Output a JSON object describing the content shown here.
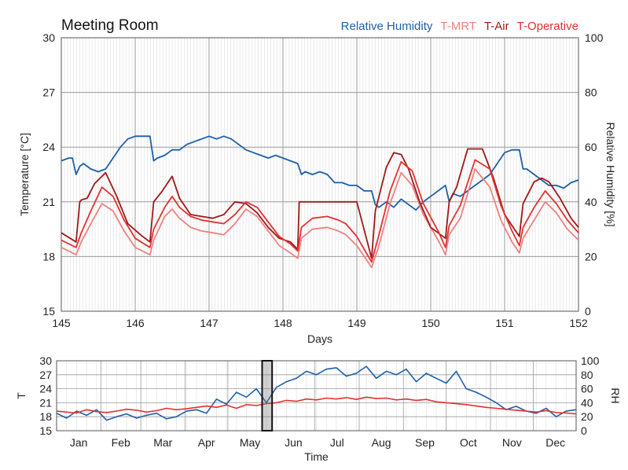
{
  "chart_data": [
    {
      "type": "line",
      "title": "Meeting Room",
      "xlabel": "Days",
      "ylabel": "Temperature [°C]",
      "y2label": "Relative Humidity [%]",
      "xlim": [
        145,
        152
      ],
      "ylim": [
        15,
        30
      ],
      "y2lim": [
        0,
        100
      ],
      "xticks": [
        "145",
        "146",
        "147",
        "148",
        "149",
        "150",
        "151",
        "152"
      ],
      "yticks": [
        "15",
        "18",
        "21",
        "24",
        "27",
        "30"
      ],
      "y2ticks": [
        "0",
        "20",
        "40",
        "60",
        "80",
        "100"
      ],
      "legend_position": "top-right",
      "grid": true,
      "series": [
        {
          "name": "Relative Humidity",
          "axis": "right",
          "color": "#1f5fa8",
          "x": [
            145.0,
            145.1,
            145.15,
            145.2,
            145.25,
            145.3,
            145.4,
            145.5,
            145.6,
            145.7,
            145.8,
            145.9,
            146.0,
            146.1,
            146.2,
            146.25,
            146.3,
            146.4,
            146.5,
            146.6,
            146.7,
            146.8,
            146.9,
            147.0,
            147.1,
            147.2,
            147.3,
            147.4,
            147.5,
            147.6,
            147.7,
            147.8,
            147.9,
            148.0,
            148.1,
            148.2,
            148.25,
            148.3,
            148.4,
            148.5,
            148.6,
            148.7,
            148.8,
            148.9,
            149.0,
            149.1,
            149.2,
            149.25,
            149.3,
            149.4,
            149.5,
            149.6,
            149.7,
            149.8,
            149.9,
            150.0,
            150.1,
            150.2,
            150.25,
            150.3,
            150.4,
            150.5,
            150.6,
            150.7,
            150.8,
            150.9,
            151.0,
            151.1,
            151.2,
            151.25,
            151.3,
            151.4,
            151.5,
            151.6,
            151.7,
            151.8,
            151.9,
            152.0
          ],
          "values": [
            55,
            56,
            56,
            50,
            53,
            54,
            52,
            51,
            52,
            56,
            60,
            63,
            64,
            64,
            64,
            55,
            56,
            57,
            59,
            59,
            61,
            62,
            63,
            64,
            63,
            64,
            63,
            61,
            59,
            58,
            57,
            56,
            57,
            56,
            55,
            54,
            50,
            51,
            50,
            51,
            50,
            47,
            47,
            46,
            46,
            44,
            44,
            39,
            38,
            40,
            38,
            41,
            39,
            37,
            40,
            42,
            44,
            46,
            40,
            43,
            42,
            44,
            46,
            48,
            50,
            54,
            58,
            59,
            59,
            52,
            52,
            50,
            48,
            46,
            46,
            45,
            47,
            48
          ]
        },
        {
          "name": "T-MRT",
          "axis": "left",
          "color": "#f08080",
          "x": [
            145.0,
            145.2,
            145.27,
            145.4,
            145.55,
            145.7,
            145.85,
            146.0,
            146.2,
            146.25,
            146.4,
            146.5,
            146.6,
            146.75,
            146.9,
            147.05,
            147.2,
            147.35,
            147.5,
            147.65,
            147.8,
            147.95,
            148.1,
            148.2,
            148.25,
            148.4,
            148.6,
            148.75,
            148.85,
            149.0,
            149.2,
            149.3,
            149.45,
            149.6,
            149.75,
            149.9,
            150.1,
            150.2,
            150.25,
            150.4,
            150.6,
            150.8,
            150.95,
            151.1,
            151.2,
            151.25,
            151.4,
            151.55,
            151.7,
            151.85,
            152.0
          ],
          "values": [
            18.5,
            18.1,
            18.8,
            19.8,
            20.9,
            20.5,
            19.4,
            18.5,
            18.1,
            18.9,
            20.2,
            20.6,
            20.1,
            19.6,
            19.4,
            19.3,
            19.2,
            19.8,
            20.6,
            20.2,
            19.4,
            18.6,
            18.2,
            17.9,
            19.0,
            19.5,
            19.6,
            19.4,
            19.2,
            18.6,
            17.4,
            18.6,
            20.9,
            22.6,
            21.9,
            20.3,
            18.9,
            18.1,
            19.2,
            20.1,
            22.8,
            21.8,
            20.0,
            18.8,
            18.2,
            19.0,
            20.0,
            21.0,
            20.4,
            19.5,
            18.9
          ]
        },
        {
          "name": "T-Air",
          "axis": "left",
          "color": "#a01818",
          "x": [
            145.0,
            145.2,
            145.25,
            145.27,
            145.35,
            145.45,
            145.6,
            145.75,
            145.9,
            146.1,
            146.2,
            146.25,
            146.35,
            146.5,
            146.6,
            146.75,
            146.9,
            147.05,
            147.2,
            147.35,
            147.5,
            147.65,
            147.8,
            147.95,
            148.1,
            148.2,
            148.22,
            148.25,
            148.5,
            148.7,
            148.8,
            149.0,
            149.2,
            149.25,
            149.4,
            149.5,
            149.6,
            149.7,
            149.85,
            150.0,
            150.2,
            150.25,
            150.35,
            150.5,
            150.6,
            150.7,
            150.85,
            151.0,
            151.2,
            151.25,
            151.4,
            151.5,
            151.6,
            151.75,
            151.9,
            152.0
          ],
          "values": [
            19.3,
            18.8,
            21.0,
            21.1,
            21.2,
            22.0,
            22.6,
            21.3,
            19.8,
            19.1,
            18.8,
            21.0,
            21.5,
            22.4,
            21.2,
            20.3,
            20.2,
            20.1,
            20.3,
            21.0,
            20.9,
            20.4,
            19.6,
            19.0,
            18.8,
            18.4,
            21.0,
            21.0,
            21.0,
            21.0,
            21.0,
            21.0,
            17.9,
            20.5,
            22.9,
            23.7,
            23.6,
            22.8,
            21.0,
            19.6,
            19.0,
            21.0,
            21.8,
            23.9,
            23.9,
            23.9,
            22.3,
            20.3,
            19.1,
            20.9,
            22.1,
            22.3,
            22.1,
            21.2,
            20.1,
            19.6
          ]
        },
        {
          "name": "T-Operative",
          "axis": "left",
          "color": "#e53030",
          "x": [
            145.0,
            145.2,
            145.27,
            145.4,
            145.55,
            145.7,
            145.85,
            146.0,
            146.2,
            146.25,
            146.4,
            146.5,
            146.6,
            146.75,
            146.9,
            147.05,
            147.2,
            147.35,
            147.5,
            147.65,
            147.8,
            147.95,
            148.1,
            148.2,
            148.25,
            148.4,
            148.6,
            148.75,
            148.85,
            149.0,
            149.2,
            149.3,
            149.45,
            149.6,
            149.75,
            149.9,
            150.1,
            150.2,
            150.25,
            150.4,
            150.6,
            150.8,
            150.95,
            151.1,
            151.2,
            151.25,
            151.4,
            151.55,
            151.7,
            151.85,
            152.0
          ],
          "values": [
            18.9,
            18.5,
            19.3,
            20.5,
            21.8,
            21.3,
            20.0,
            19.0,
            18.5,
            19.5,
            20.7,
            21.3,
            20.7,
            20.2,
            20.0,
            19.9,
            19.8,
            20.3,
            21.0,
            20.7,
            19.9,
            19.1,
            18.7,
            18.3,
            19.6,
            20.1,
            20.2,
            20.0,
            19.8,
            19.1,
            17.7,
            19.2,
            21.6,
            23.2,
            22.7,
            20.9,
            19.4,
            18.5,
            19.7,
            20.8,
            23.3,
            22.8,
            20.8,
            19.4,
            18.6,
            19.6,
            20.7,
            21.6,
            20.9,
            20.0,
            19.3
          ]
        }
      ]
    },
    {
      "type": "line",
      "xlabel": "Time",
      "ylabel": "T",
      "y2label": "RH",
      "ylim": [
        15,
        30
      ],
      "y2lim": [
        0,
        100
      ],
      "yticks": [
        "15",
        "18",
        "21",
        "24",
        "27",
        "30"
      ],
      "y2ticks": [
        "0",
        "20",
        "40",
        "60",
        "80",
        "100"
      ],
      "categories": [
        "Jan",
        "Feb",
        "Mar",
        "Apr",
        "May",
        "Jun",
        "Jul",
        "Aug",
        "Sep",
        "Oct",
        "Nov",
        "Dec"
      ],
      "xlim_days": [
        1,
        365
      ],
      "highlight_days": [
        145,
        152
      ],
      "grid": true,
      "series": [
        {
          "name": "RH",
          "axis": "right",
          "color": "#1f5fa8",
          "x": [
            1,
            8,
            15,
            22,
            29,
            36,
            43,
            50,
            57,
            64,
            71,
            78,
            85,
            92,
            99,
            106,
            113,
            120,
            127,
            134,
            141,
            148,
            155,
            162,
            169,
            176,
            183,
            190,
            197,
            204,
            211,
            218,
            225,
            232,
            239,
            246,
            253,
            260,
            267,
            274,
            281,
            288,
            295,
            302,
            309,
            316,
            323,
            330,
            337,
            344,
            351,
            358,
            365
          ],
          "values": [
            25,
            18,
            28,
            22,
            30,
            15,
            20,
            24,
            18,
            22,
            25,
            17,
            20,
            28,
            30,
            25,
            45,
            38,
            55,
            48,
            60,
            40,
            62,
            70,
            75,
            85,
            80,
            88,
            90,
            78,
            82,
            92,
            75,
            85,
            80,
            88,
            70,
            82,
            75,
            68,
            85,
            60,
            55,
            48,
            40,
            30,
            35,
            28,
            25,
            32,
            20,
            28,
            30
          ]
        },
        {
          "name": "T",
          "axis": "left",
          "color": "#e53030",
          "x": [
            1,
            8,
            15,
            22,
            29,
            36,
            43,
            50,
            57,
            64,
            71,
            78,
            85,
            92,
            99,
            106,
            113,
            120,
            127,
            134,
            141,
            148,
            155,
            162,
            169,
            176,
            183,
            190,
            197,
            204,
            211,
            218,
            225,
            232,
            239,
            246,
            253,
            260,
            267,
            274,
            281,
            288,
            295,
            302,
            309,
            316,
            323,
            330,
            337,
            344,
            351,
            358,
            365
          ],
          "values": [
            19.2,
            19.0,
            18.8,
            19.5,
            19.1,
            18.9,
            19.2,
            19.6,
            19.4,
            19.0,
            19.3,
            19.8,
            19.5,
            19.7,
            20.0,
            20.3,
            20.0,
            20.5,
            19.8,
            20.6,
            20.4,
            20.8,
            21.0,
            21.5,
            21.3,
            21.8,
            21.6,
            22.0,
            21.8,
            22.1,
            21.7,
            22.2,
            21.9,
            22.0,
            21.6,
            21.8,
            21.5,
            21.7,
            21.2,
            21.0,
            20.8,
            20.6,
            20.3,
            20.0,
            19.8,
            19.6,
            19.4,
            19.2,
            19.0,
            19.3,
            18.9,
            18.8,
            18.6
          ]
        }
      ]
    }
  ]
}
